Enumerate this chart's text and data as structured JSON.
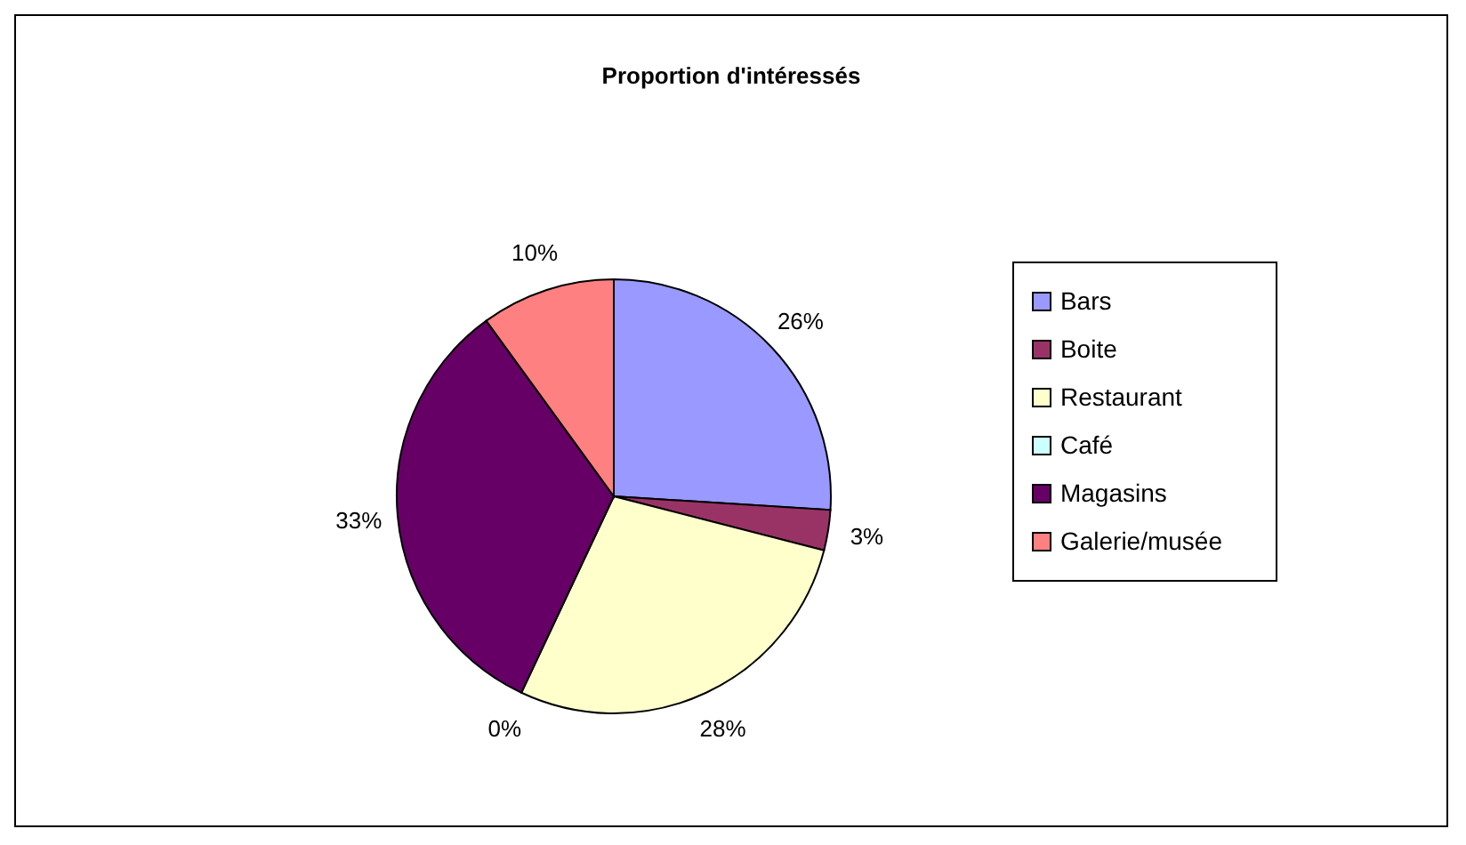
{
  "chart_data": {
    "type": "pie",
    "title": "Proportion d'intéressés",
    "categories": [
      "Bars",
      "Boite",
      "Restaurant",
      "Café",
      "Magasins",
      "Galerie/musée"
    ],
    "values": [
      26,
      3,
      28,
      0,
      33,
      10
    ],
    "colors": [
      "#9999ff",
      "#993366",
      "#ffffcc",
      "#ccffff",
      "#660066",
      "#ff8080"
    ],
    "value_labels": [
      "26%",
      "3%",
      "28%",
      "0%",
      "33%",
      "10%"
    ],
    "legend": "right"
  }
}
